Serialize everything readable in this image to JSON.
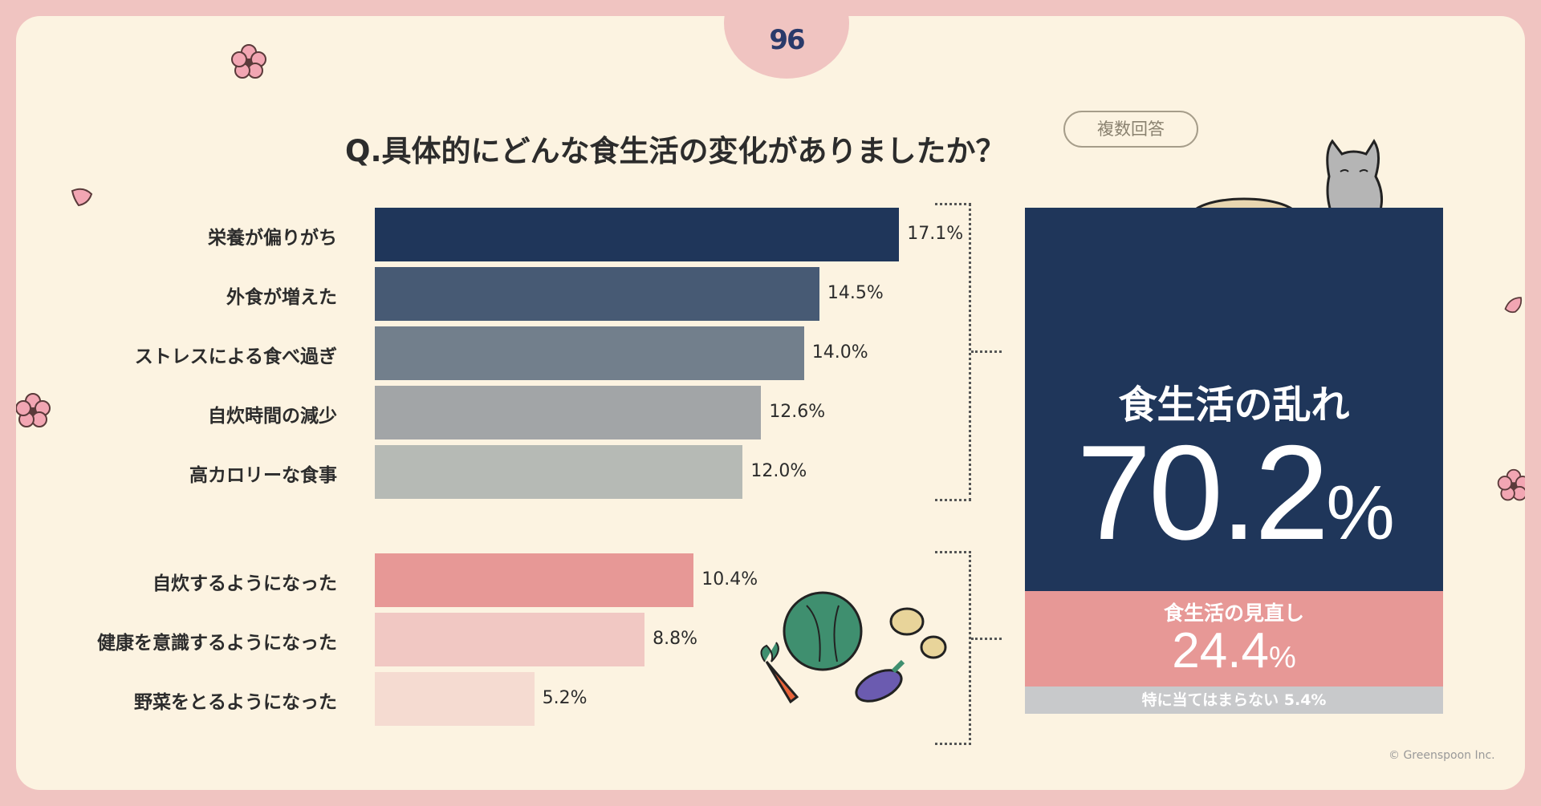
{
  "logo_text": "96",
  "title": "Q.具体的にどんな食生活の変化がありましたか？",
  "badge": "複数回答",
  "chart_data": {
    "type": "bar",
    "orientation": "horizontal",
    "unit": "%",
    "categories": [
      "栄養が偏りがち",
      "外食が増えた",
      "ストレスによる食べ過ぎ",
      "自炊時間の減少",
      "高カロリーな食事",
      "自炊するようになった",
      "健康を意識するようになった",
      "野菜をとるようになった"
    ],
    "values": [
      17.1,
      14.5,
      14.0,
      12.6,
      12.0,
      10.4,
      8.8,
      5.2
    ],
    "value_labels": [
      "17.1%",
      "14.5%",
      "14.0%",
      "12.6%",
      "12.0%",
      "10.4%",
      "8.8%",
      "5.2%"
    ],
    "colors": [
      "#1f365a",
      "#475a74",
      "#727f8c",
      "#a2a5a7",
      "#b6bab5",
      "#e79896",
      "#f1c8c3",
      "#f5dbd1"
    ],
    "groups": [
      {
        "label": "食生活の乱れ",
        "value": 70.2,
        "display_number": "70.2",
        "display_unit": "%",
        "members": [
          0,
          1,
          2,
          3,
          4
        ]
      },
      {
        "label": "食生活の見直し",
        "value": 24.4,
        "display_number": "24.4",
        "display_unit": "%",
        "members": [
          5,
          6,
          7
        ]
      }
    ],
    "other": {
      "label": "特に当てはまらない",
      "value": 5.4,
      "display": "5.4%"
    }
  },
  "copyright": "© Greenspoon Inc."
}
